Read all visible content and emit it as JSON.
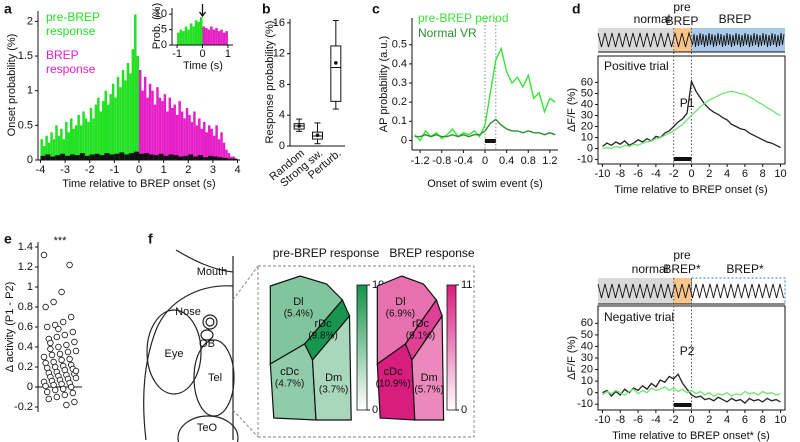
{
  "schematic": {
    "panel": "f",
    "labels": [
      "Mouth",
      "Nose",
      "OB",
      "Eye",
      "Tel",
      "TeO"
    ]
  },
  "chart_data": [
    {
      "type": "histogram",
      "panel": "a",
      "xlabel": "Time relative to BREP onset (s)",
      "ylabel": "Onset probability (%)",
      "xlim": [
        -4.1,
        4.1
      ],
      "ylim": [
        0,
        2.15
      ],
      "xticks": [
        -4,
        -3,
        -2,
        -1,
        0,
        1,
        2,
        3,
        4
      ],
      "yticks": [
        0,
        0.5,
        1,
        1.5,
        2
      ],
      "series": [
        {
          "name": "pre-BREP response",
          "color": "#22e022",
          "bins": [
            -4,
            -3.9,
            -3.8,
            -3.7,
            -3.6,
            -3.5,
            -3.4,
            -3.3,
            -3.2,
            -3.1,
            -3,
            -2.9,
            -2.8,
            -2.7,
            -2.6,
            -2.5,
            -2.4,
            -2.3,
            -2.2,
            -2.1,
            -2,
            -1.9,
            -1.8,
            -1.7,
            -1.6,
            -1.5,
            -1.4,
            -1.3,
            -1.2,
            -1.1,
            -1,
            -0.9,
            -0.8,
            -0.7,
            -0.6,
            -0.5,
            -0.4,
            -0.3,
            -0.2,
            -0.1,
            0
          ],
          "values": [
            0.3,
            0.2,
            0.35,
            0.25,
            0.4,
            0.3,
            0.5,
            0.35,
            0.45,
            0.3,
            0.55,
            0.4,
            0.6,
            0.45,
            0.5,
            0.65,
            0.5,
            0.7,
            0.6,
            0.55,
            0.75,
            0.6,
            0.8,
            0.9,
            0.7,
            0.85,
            1.0,
            0.8,
            0.95,
            1.1,
            0.9,
            1.2,
            1.05,
            1.3,
            1.15,
            1.4,
            1.25,
            1.6,
            2.1,
            1.5
          ]
        },
        {
          "name": "BREP response",
          "color": "#e61ec8",
          "bins": [
            0,
            0.1,
            0.2,
            0.3,
            0.4,
            0.5,
            0.6,
            0.7,
            0.8,
            0.9,
            1,
            1.1,
            1.2,
            1.3,
            1.4,
            1.5,
            1.6,
            1.7,
            1.8,
            1.9,
            2,
            2.1,
            2.2,
            2.3,
            2.4,
            2.5,
            2.6,
            2.7,
            2.8,
            2.9,
            3,
            3.1,
            3.2,
            3.3,
            3.4,
            3.5,
            3.6,
            3.7,
            3.8,
            3.9,
            4
          ],
          "values": [
            1.3,
            1.0,
            1.2,
            0.9,
            1.1,
            1.0,
            0.8,
            1.05,
            0.9,
            0.85,
            0.95,
            0.7,
            0.9,
            0.75,
            0.8,
            0.65,
            0.85,
            0.7,
            0.6,
            0.75,
            0.65,
            0.55,
            0.7,
            0.5,
            0.6,
            0.45,
            0.55,
            0.4,
            0.5,
            0.45,
            0.35,
            0.5,
            0.3,
            0.4,
            0.25,
            0.15,
            0.1,
            0.05,
            0.05,
            0
          ]
        },
        {
          "color": "#111111",
          "bins": [
            -4,
            -3.8,
            -3.6,
            -3.4,
            -3.2,
            -3,
            -2.8,
            -2.6,
            -2.4,
            -2.2,
            -2,
            -1.8,
            -1.6,
            -1.4,
            -1.2,
            -1,
            -0.8,
            -0.6,
            -0.4,
            -0.2,
            0,
            0.2,
            0.4,
            0.6,
            0.8,
            1,
            1.2,
            1.4,
            1.6,
            1.8,
            2,
            2.2,
            2.4,
            2.6,
            2.8,
            3,
            3.2,
            3.4,
            3.6,
            3.8,
            4
          ],
          "values": [
            0.06,
            0.08,
            0.05,
            0.07,
            0.09,
            0.06,
            0.08,
            0.07,
            0.1,
            0.06,
            0.08,
            0.09,
            0.07,
            0.1,
            0.08,
            0.09,
            0.11,
            0.08,
            0.1,
            0.12,
            0.09,
            0.1,
            0.08,
            0.07,
            0.09,
            0.06,
            0.08,
            0.07,
            0.05,
            0.06,
            0.08,
            0.05,
            0.07,
            0.04,
            0.06,
            0.05,
            0.04,
            0.03,
            0.02,
            0.02
          ]
        }
      ]
    },
    {
      "type": "histogram",
      "xlabel": "Time (s)",
      "ylabel": "Prob. (%)",
      "xlim": [
        -1.2,
        1.2
      ],
      "ylim": [
        0,
        12
      ],
      "xticks": [
        -1,
        0,
        1
      ],
      "yticks": [
        0,
        5,
        10
      ],
      "arrow_x": 0,
      "series": [
        {
          "color": "#22e022",
          "bins": [
            -1,
            -0.9,
            -0.8,
            -0.7,
            -0.6,
            -0.5,
            -0.4,
            -0.3,
            -0.2,
            -0.1,
            0
          ],
          "values": [
            4,
            5,
            4.5,
            6,
            5,
            7,
            6,
            8,
            7.5,
            9
          ]
        },
        {
          "color": "#e61ec8",
          "bins": [
            0,
            0.1,
            0.2,
            0.3,
            0.4,
            0.5,
            0.6,
            0.7,
            0.8,
            0.9,
            1
          ],
          "values": [
            6,
            5.5,
            5,
            6,
            5,
            5.5,
            4.5,
            5,
            4,
            4.5
          ]
        }
      ]
    },
    {
      "type": "box",
      "panel": "b",
      "ylabel": "Response probability (%)",
      "ylim": [
        0,
        16.5
      ],
      "yticks": [
        0,
        4,
        8,
        12,
        16
      ],
      "categories": [
        "Random",
        "Strong sw.",
        "Perturb."
      ],
      "min": [
        1.9,
        0.3,
        4.8
      ],
      "q1": [
        2.2,
        0.9,
        5.8
      ],
      "median": [
        2.6,
        1.3,
        10.2
      ],
      "q3": [
        2.9,
        1.8,
        13.0
      ],
      "max": [
        3.5,
        3.0,
        16.3
      ],
      "mean": [
        2.6,
        1.4,
        10.8
      ]
    },
    {
      "type": "line",
      "panel": "c",
      "xlabel": "Onset of swim event (s)",
      "ylabel": "AP probability (a.u.)",
      "xlim": [
        -1.35,
        1.35
      ],
      "ylim": [
        -0.05,
        0.64
      ],
      "xticks": [
        -1.2,
        -0.8,
        -0.4,
        0,
        0.4,
        0.8,
        1.2
      ],
      "yticks": [
        0,
        0.1,
        0.2,
        0.3,
        0.4,
        0.5
      ],
      "event_bar": [
        0,
        0.2
      ],
      "x": [
        -1.3,
        -1.2,
        -1.1,
        -1,
        -0.9,
        -0.8,
        -0.7,
        -0.6,
        -0.5,
        -0.4,
        -0.3,
        -0.2,
        -0.1,
        0,
        0.1,
        0.2,
        0.3,
        0.4,
        0.5,
        0.6,
        0.7,
        0.8,
        0.9,
        1,
        1.1,
        1.2,
        1.3
      ],
      "series": [
        {
          "name": "pre-BREP period",
          "color": "#39e339",
          "values": [
            0.03,
            0.0,
            0.05,
            0.02,
            0.04,
            0.01,
            0.03,
            0.06,
            0.02,
            0.04,
            0.03,
            0.05,
            0.02,
            0.08,
            0.25,
            0.42,
            0.48,
            0.36,
            0.3,
            0.33,
            0.28,
            0.34,
            0.22,
            0.25,
            0.15,
            0.22,
            0.2
          ]
        },
        {
          "name": "Normal VR",
          "color": "#2d8f2d",
          "values": [
            0.02,
            0.02,
            0.03,
            0.02,
            0.03,
            0.02,
            0.02,
            0.03,
            0.02,
            0.03,
            0.02,
            0.03,
            0.03,
            0.05,
            0.09,
            0.11,
            0.08,
            0.06,
            0.05,
            0.05,
            0.04,
            0.05,
            0.04,
            0.04,
            0.03,
            0.04,
            0.03
          ]
        }
      ]
    },
    {
      "type": "trial",
      "panel": "d",
      "xlabel": "Time relative to BREP onset (s)",
      "ylabel": "ΔF/F (%)",
      "annotation": "Positive trial",
      "peak_label": "P1",
      "phase_labels": [
        "normal",
        "pre",
        "BREP",
        "BREP"
      ],
      "label_colors": [
        "#111111",
        "#f0962e",
        "#f0962e",
        "#2f7fc1"
      ],
      "phase_colors": [
        "#d9d9d9",
        "#fbc48a",
        "#a9c9e8"
      ],
      "xlim": [
        -10.5,
        10.5
      ],
      "ylim": [
        -14,
        84
      ],
      "xticks": [
        -10,
        -8,
        -6,
        -4,
        -2,
        0,
        2,
        4,
        6,
        8,
        10
      ],
      "yticks": [
        -10,
        0,
        10,
        20,
        30,
        40,
        50,
        60
      ],
      "event_bar": [
        -2,
        0
      ],
      "x": [
        -10,
        -9.5,
        -9,
        -8.5,
        -8,
        -7.5,
        -7,
        -6.5,
        -6,
        -5.5,
        -5,
        -4.5,
        -4,
        -3.5,
        -3,
        -2.5,
        -2,
        -1.5,
        -1,
        -0.5,
        0,
        0.5,
        1,
        1.5,
        2,
        2.5,
        3,
        3.5,
        4,
        4.5,
        5,
        5.5,
        6,
        6.5,
        7,
        7.5,
        8,
        8.5,
        9,
        9.5,
        10
      ],
      "series": [
        {
          "color": "#222222",
          "values": [
            2,
            5,
            3,
            6,
            4,
            7,
            3,
            5,
            8,
            6,
            9,
            7,
            11,
            10,
            14,
            16,
            20,
            24,
            27,
            32,
            61,
            52,
            46,
            40,
            36,
            33,
            31,
            28,
            26,
            22,
            20,
            18,
            17,
            14,
            12,
            10,
            8,
            6,
            5,
            3,
            1
          ]
        },
        {
          "color": "#6ee66e",
          "values": [
            0,
            1,
            0,
            2,
            1,
            3,
            2,
            4,
            3,
            5,
            6,
            7,
            9,
            10,
            12,
            14,
            16,
            19,
            22,
            26,
            30,
            34,
            38,
            41,
            44,
            46,
            48,
            50,
            51,
            52,
            51,
            50,
            49,
            47,
            45,
            42,
            40,
            37,
            35,
            32,
            30
          ]
        }
      ]
    },
    {
      "type": "trial",
      "xlabel": "Time relative to BREP onset* (s)",
      "ylabel": "ΔF/F (%)",
      "annotation": "Negative trial",
      "peak_label": "P2",
      "phase_labels": [
        "normal",
        "pre",
        "BREP*",
        "BREP*"
      ],
      "label_colors": [
        "#111111",
        "#f0962e",
        "#f0962e",
        "#2f7fc1"
      ],
      "phase_colors": [
        "#d9d9d9",
        "#fbc48a",
        "#ffffff"
      ],
      "xlim": [
        -10.5,
        10.5
      ],
      "ylim": [
        -15,
        75
      ],
      "xticks": [
        -10,
        -8,
        -6,
        -4,
        -2,
        0,
        2,
        4,
        6,
        8,
        10
      ],
      "yticks": [
        -10,
        0,
        10,
        20,
        30,
        40,
        50,
        60
      ],
      "event_bar": [
        -2,
        0
      ],
      "x": [
        -10,
        -9.5,
        -9,
        -8.5,
        -8,
        -7.5,
        -7,
        -6.5,
        -6,
        -5.5,
        -5,
        -4.5,
        -4,
        -3.5,
        -3,
        -2.5,
        -2,
        -1.5,
        -1,
        -0.5,
        0,
        0.5,
        1,
        1.5,
        2,
        2.5,
        3,
        3.5,
        4,
        4.5,
        5,
        5.5,
        6,
        6.5,
        7,
        7.5,
        8,
        8.5,
        9,
        9.5,
        10
      ],
      "series": [
        {
          "color": "#222222",
          "values": [
            0,
            2,
            -3,
            1,
            -2,
            3,
            0,
            4,
            2,
            6,
            3,
            8,
            5,
            11,
            9,
            14,
            12,
            16,
            8,
            3,
            -2,
            -4,
            -3,
            -6,
            -5,
            -7,
            -4,
            -6,
            -8,
            -5,
            -7,
            -6,
            -9,
            -5,
            -7,
            -6,
            -8,
            -5,
            -7,
            -6,
            -8
          ]
        },
        {
          "color": "#6ee66e",
          "values": [
            -2,
            1,
            -1,
            2,
            0,
            -2,
            1,
            3,
            -1,
            2,
            0,
            4,
            2,
            3,
            5,
            2,
            4,
            1,
            3,
            0,
            2,
            -1,
            1,
            -2,
            0,
            -3,
            -1,
            -2,
            0,
            -3,
            -1,
            -2,
            1,
            -1,
            0,
            -2,
            1,
            -1,
            0,
            -2,
            -1
          ]
        }
      ]
    },
    {
      "type": "strip",
      "panel": "e",
      "ylabel": "Δ activity (P1 - P2)",
      "significance": "***",
      "ylim": [
        -0.25,
        1.45
      ],
      "yticks": [
        -0.2,
        0,
        0.2,
        0.4,
        0.6,
        0.8,
        1,
        1.2,
        1.4
      ],
      "values": [
        1.32,
        1.22,
        0.95,
        0.85,
        0.8,
        0.7,
        0.65,
        0.62,
        0.6,
        0.55,
        0.52,
        0.5,
        0.48,
        0.45,
        0.42,
        0.4,
        0.38,
        0.36,
        0.35,
        0.33,
        0.32,
        0.3,
        0.28,
        0.27,
        0.25,
        0.24,
        0.22,
        0.21,
        0.2,
        0.19,
        0.18,
        0.17,
        0.15,
        0.14,
        0.13,
        0.12,
        0.11,
        0.1,
        0.09,
        0.08,
        0.07,
        0.06,
        0.05,
        0.04,
        0.03,
        0.02,
        0.01,
        0,
        -0.02,
        -0.03,
        -0.05,
        -0.06,
        -0.08,
        -0.1,
        -0.12,
        -0.15,
        -0.18,
        0.58,
        0.44,
        0.16
      ]
    },
    {
      "type": "region-map",
      "title": "pre-BREP response",
      "regions": [
        "Dl",
        "rDc",
        "cDc",
        "Dm"
      ],
      "values": [
        5.4,
        9.8,
        4.7,
        3.7
      ],
      "value_labels": [
        "(5.4%)",
        "(9.8%)",
        "(4.7%)",
        "(3.7%)"
      ],
      "clim": [
        0,
        10
      ],
      "cticks": [
        0,
        10
      ],
      "cmap": [
        "#ffffff",
        "#13934a"
      ]
    },
    {
      "type": "region-map",
      "title": "BREP response",
      "regions": [
        "Dl",
        "rDc",
        "cDc",
        "Dm"
      ],
      "values": [
        6.9,
        9.1,
        10.9,
        5.7
      ],
      "value_labels": [
        "(6.9%)",
        "(9.1%)",
        "(10.9%)",
        "(5.7%)"
      ],
      "clim": [
        0,
        11
      ],
      "cticks": [
        0,
        11
      ],
      "cmap": [
        "#ffffff",
        "#d81b7e"
      ]
    }
  ]
}
